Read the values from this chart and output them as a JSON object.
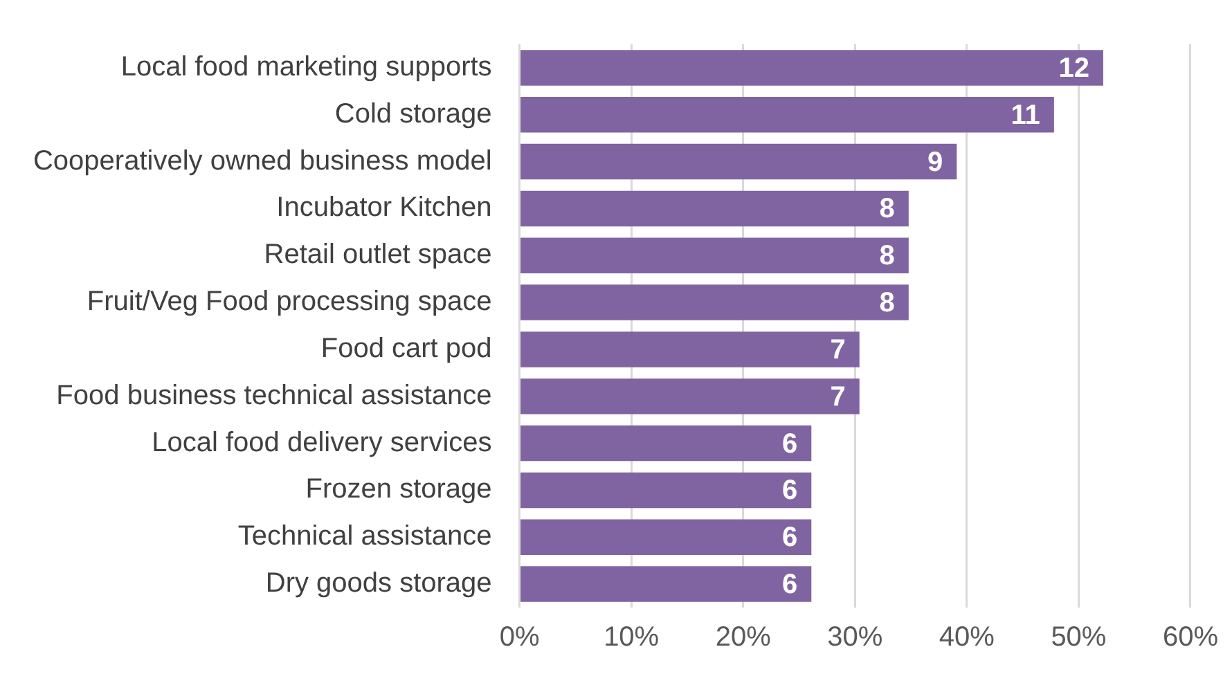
{
  "chart_data": {
    "type": "bar",
    "orientation": "horizontal",
    "categories": [
      "Local food marketing supports",
      "Cold storage",
      "Cooperatively owned business model",
      "Incubator Kitchen",
      "Retail outlet space",
      "Fruit/Veg Food processing space",
      "Food cart pod",
      "Food business technical assistance",
      "Local food delivery services",
      "Frozen storage",
      "Technical assistance",
      "Dry goods storage"
    ],
    "values": [
      52.2,
      47.8,
      39.1,
      34.8,
      34.8,
      34.8,
      30.4,
      30.4,
      26.1,
      26.1,
      26.1,
      26.1
    ],
    "annotations": [
      {
        "text": "12",
        "x": 52.2,
        "y": "Local food marketing supports"
      },
      {
        "text": "11",
        "x": 47.8,
        "y": "Cold storage"
      },
      {
        "text": "9",
        "x": 39.1,
        "y": "Cooperatively owned business model"
      },
      {
        "text": "8",
        "x": 34.8,
        "y": "Incubator Kitchen"
      },
      {
        "text": "8",
        "x": 34.8,
        "y": "Retail outlet space"
      },
      {
        "text": "8",
        "x": 34.8,
        "y": "Fruit/Veg Food processing space"
      },
      {
        "text": "7",
        "x": 30.4,
        "y": "Food cart pod"
      },
      {
        "text": "7",
        "x": 30.4,
        "y": "Food business technical assistance"
      },
      {
        "text": "6",
        "x": 26.1,
        "y": "Local food delivery services"
      },
      {
        "text": "6",
        "x": 26.1,
        "y": "Frozen storage"
      },
      {
        "text": "6",
        "x": 26.1,
        "y": "Technical assistance"
      },
      {
        "text": "6",
        "x": 26.1,
        "y": "Dry goods storage"
      }
    ],
    "color": "#8064a2",
    "xlim": [
      0,
      60
    ],
    "xticks": [
      {
        "value": 0,
        "label": "0%"
      },
      {
        "value": 10,
        "label": "10%"
      },
      {
        "value": 20,
        "label": "20%"
      },
      {
        "value": 30,
        "label": "30%"
      },
      {
        "value": 40,
        "label": "40%"
      },
      {
        "value": 50,
        "label": "50%"
      },
      {
        "value": 60,
        "label": "60%"
      }
    ],
    "grid": "x"
  }
}
